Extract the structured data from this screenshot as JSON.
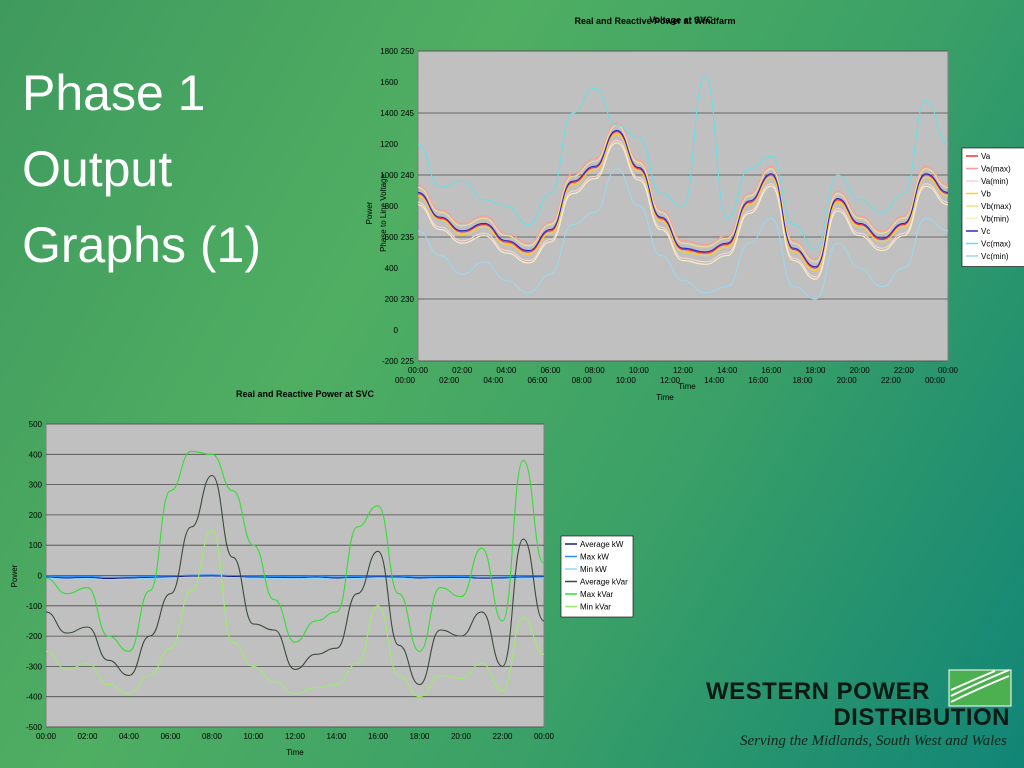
{
  "slide": {
    "title_lines": [
      "Phase 1",
      "Output",
      "Graphs (1)"
    ]
  },
  "logo": {
    "line1": "WESTERN POWER",
    "line2": "DISTRIBUTION",
    "tagline": "Serving the Midlands, South West and Wales"
  },
  "colors": {
    "background_start": "#3f9a5e",
    "background_end": "#118577",
    "plot_area": "#c0c0c0",
    "gridline": "#4a4a4a"
  },
  "chart_data": [
    {
      "id": "top",
      "type": "line",
      "title": "Real and Reactive Power at Windfarm",
      "title_overlay": "Voltage at SVC",
      "ylabel": "Power",
      "ylabel_overlay": "Phase to Line Voltage",
      "xlabel": "Time",
      "xlabel_overlay": "Time",
      "x_ticks": [
        "00:00",
        "02:00",
        "04:00",
        "06:00",
        "08:00",
        "10:00",
        "12:00",
        "14:00",
        "16:00",
        "18:00",
        "20:00",
        "22:00",
        "00:00"
      ],
      "y_ticks_power": [
        1800,
        1600,
        1400,
        1200,
        1000,
        800,
        600,
        400,
        200,
        0,
        -200
      ],
      "y_ticks_voltage": [
        250,
        245,
        240,
        235,
        230,
        225
      ],
      "ylim_voltage": [
        225,
        250
      ],
      "grid": true,
      "legend_position": "right",
      "x": [
        0,
        1,
        2,
        3,
        4,
        5,
        6,
        7,
        8,
        9,
        10,
        11,
        12,
        13,
        14,
        15,
        16,
        17,
        18,
        19,
        20,
        21,
        22,
        23,
        24
      ],
      "series": [
        {
          "name": "Va",
          "color": "#ff2a2a",
          "values": [
            238.5,
            236.5,
            235.4,
            236.0,
            234.6,
            233.8,
            235.5,
            239.4,
            240.6,
            243.5,
            240.5,
            236.5,
            234.0,
            233.7,
            234.4,
            237.8,
            240.0,
            234.0,
            232.5,
            238.0,
            236.0,
            234.8,
            236.0,
            240.0,
            238.5
          ]
        },
        {
          "name": "Va(max)",
          "color": "#ff9a9a",
          "values": [
            239.2,
            237.2,
            236.1,
            236.7,
            235.3,
            234.5,
            236.2,
            240.1,
            241.3,
            244.2,
            241.2,
            237.2,
            234.7,
            234.4,
            235.1,
            238.5,
            240.7,
            234.7,
            233.2,
            238.7,
            236.7,
            235.5,
            236.7,
            240.7,
            239.2
          ]
        },
        {
          "name": "Va(min)",
          "color": "#ffd0d0",
          "values": [
            237.8,
            235.8,
            234.7,
            235.3,
            233.9,
            233.1,
            234.8,
            238.7,
            239.9,
            242.8,
            239.8,
            235.8,
            233.3,
            233.0,
            233.7,
            237.1,
            239.3,
            233.3,
            231.8,
            237.3,
            235.3,
            234.1,
            235.3,
            239.3,
            237.8
          ]
        },
        {
          "name": "Vb",
          "color": "#ffd020",
          "values": [
            238.3,
            236.4,
            235.2,
            235.8,
            234.4,
            233.6,
            235.3,
            239.2,
            240.4,
            243.3,
            240.3,
            236.3,
            233.8,
            233.5,
            234.2,
            237.6,
            239.8,
            233.8,
            232.3,
            237.8,
            235.8,
            234.6,
            235.8,
            239.8,
            238.3
          ]
        },
        {
          "name": "Vb(max)",
          "color": "#f0e08a",
          "values": [
            239.0,
            237.0,
            235.9,
            236.5,
            235.1,
            234.3,
            236.0,
            239.9,
            241.1,
            244.0,
            241.0,
            237.0,
            234.5,
            234.2,
            234.9,
            238.3,
            240.5,
            234.5,
            233.0,
            238.5,
            236.5,
            235.3,
            236.5,
            240.5,
            239.0
          ]
        },
        {
          "name": "Vb(min)",
          "color": "#f8f0c0",
          "values": [
            237.6,
            235.6,
            234.5,
            235.1,
            233.7,
            232.9,
            234.6,
            238.5,
            239.7,
            242.6,
            239.6,
            235.6,
            233.1,
            232.8,
            233.5,
            236.9,
            239.1,
            233.1,
            231.6,
            237.1,
            235.1,
            233.9,
            235.1,
            239.1,
            237.6
          ]
        },
        {
          "name": "Vc",
          "color": "#2a2acc",
          "values": [
            238.6,
            236.6,
            235.5,
            236.1,
            234.7,
            233.9,
            235.6,
            239.5,
            240.7,
            243.6,
            240.6,
            236.6,
            234.1,
            233.8,
            234.5,
            237.9,
            240.1,
            234.1,
            232.6,
            238.1,
            236.1,
            234.9,
            236.1,
            240.1,
            238.6
          ]
        },
        {
          "name": "Vc(max)",
          "color": "#66e0e8",
          "values": [
            242.5,
            239.0,
            239.5,
            238.0,
            237.5,
            236.0,
            238.5,
            245.0,
            247.0,
            244.0,
            243.0,
            238.5,
            237.5,
            248.0,
            236.5,
            240.5,
            241.5,
            236.0,
            234.0,
            240.0,
            238.0,
            237.0,
            238.5,
            246.0,
            242.5
          ]
        },
        {
          "name": "Vc(min)",
          "color": "#9ad8f0",
          "values": [
            235.5,
            233.5,
            232.0,
            233.0,
            231.5,
            230.5,
            232.0,
            236.0,
            237.0,
            240.5,
            237.5,
            233.5,
            231.5,
            230.5,
            231.0,
            234.5,
            236.5,
            231.0,
            230.0,
            234.5,
            232.5,
            231.0,
            232.5,
            236.5,
            235.5
          ]
        }
      ]
    },
    {
      "id": "bottom",
      "type": "line",
      "title": "Real and Reactive Power at SVC",
      "ylabel": "Power",
      "xlabel": "Time",
      "ylim": [
        -500,
        500
      ],
      "y_ticks": [
        500,
        400,
        300,
        200,
        100,
        0,
        -100,
        -200,
        -300,
        -400,
        -500
      ],
      "x_ticks": [
        "00:00",
        "02:00",
        "04:00",
        "06:00",
        "08:00",
        "10:00",
        "12:00",
        "14:00",
        "16:00",
        "18:00",
        "20:00",
        "22:00",
        "00:00"
      ],
      "grid": true,
      "legend_position": "right",
      "x": [
        0,
        1,
        2,
        3,
        4,
        5,
        6,
        7,
        8,
        9,
        10,
        11,
        12,
        13,
        14,
        15,
        16,
        17,
        18,
        19,
        20,
        21,
        22,
        23,
        24
      ],
      "series": [
        {
          "name": "Average kW",
          "color": "#1f1f7a",
          "values": [
            -5,
            -8,
            -6,
            -10,
            -8,
            -6,
            -4,
            -2,
            -1,
            -3,
            -5,
            -6,
            -7,
            -5,
            -8,
            -6,
            -4,
            -5,
            -8,
            -7,
            -6,
            -9,
            -8,
            -5,
            -4
          ]
        },
        {
          "name": "Max kW",
          "color": "#2a8cff",
          "values": [
            -2,
            -4,
            -3,
            -6,
            -5,
            -3,
            -1,
            1,
            2,
            0,
            -2,
            -3,
            -4,
            -2,
            -5,
            -3,
            -1,
            -2,
            -5,
            -4,
            -3,
            -6,
            -5,
            -2,
            -1
          ]
        },
        {
          "name": "Min kW",
          "color": "#8fd8ff",
          "values": [
            -9,
            -12,
            -10,
            -14,
            -12,
            -10,
            -8,
            -6,
            -5,
            -7,
            -9,
            -10,
            -11,
            -9,
            -12,
            -10,
            -8,
            -9,
            -12,
            -11,
            -10,
            -13,
            -12,
            -9,
            -8
          ]
        },
        {
          "name": "Average kVar",
          "color": "#3a4a3a",
          "values": [
            -120,
            -190,
            -170,
            -280,
            -330,
            -200,
            -60,
            160,
            330,
            60,
            -160,
            -180,
            -310,
            -260,
            -240,
            -60,
            80,
            -230,
            -360,
            -180,
            -200,
            -120,
            -300,
            120,
            -150
          ]
        },
        {
          "name": "Max kVar",
          "color": "#33dd33",
          "values": [
            -10,
            -60,
            -40,
            -200,
            -250,
            -50,
            280,
            410,
            400,
            280,
            100,
            -80,
            -220,
            -150,
            -120,
            160,
            230,
            -60,
            -250,
            -40,
            -70,
            90,
            -150,
            380,
            40
          ]
        },
        {
          "name": "Min kVar",
          "color": "#99ee66",
          "values": [
            -250,
            -310,
            -290,
            -360,
            -390,
            -330,
            -240,
            -50,
            150,
            -220,
            -300,
            -350,
            -390,
            -370,
            -360,
            -290,
            -100,
            -330,
            -400,
            -330,
            -340,
            -290,
            -380,
            -140,
            -260
          ]
        }
      ]
    }
  ]
}
